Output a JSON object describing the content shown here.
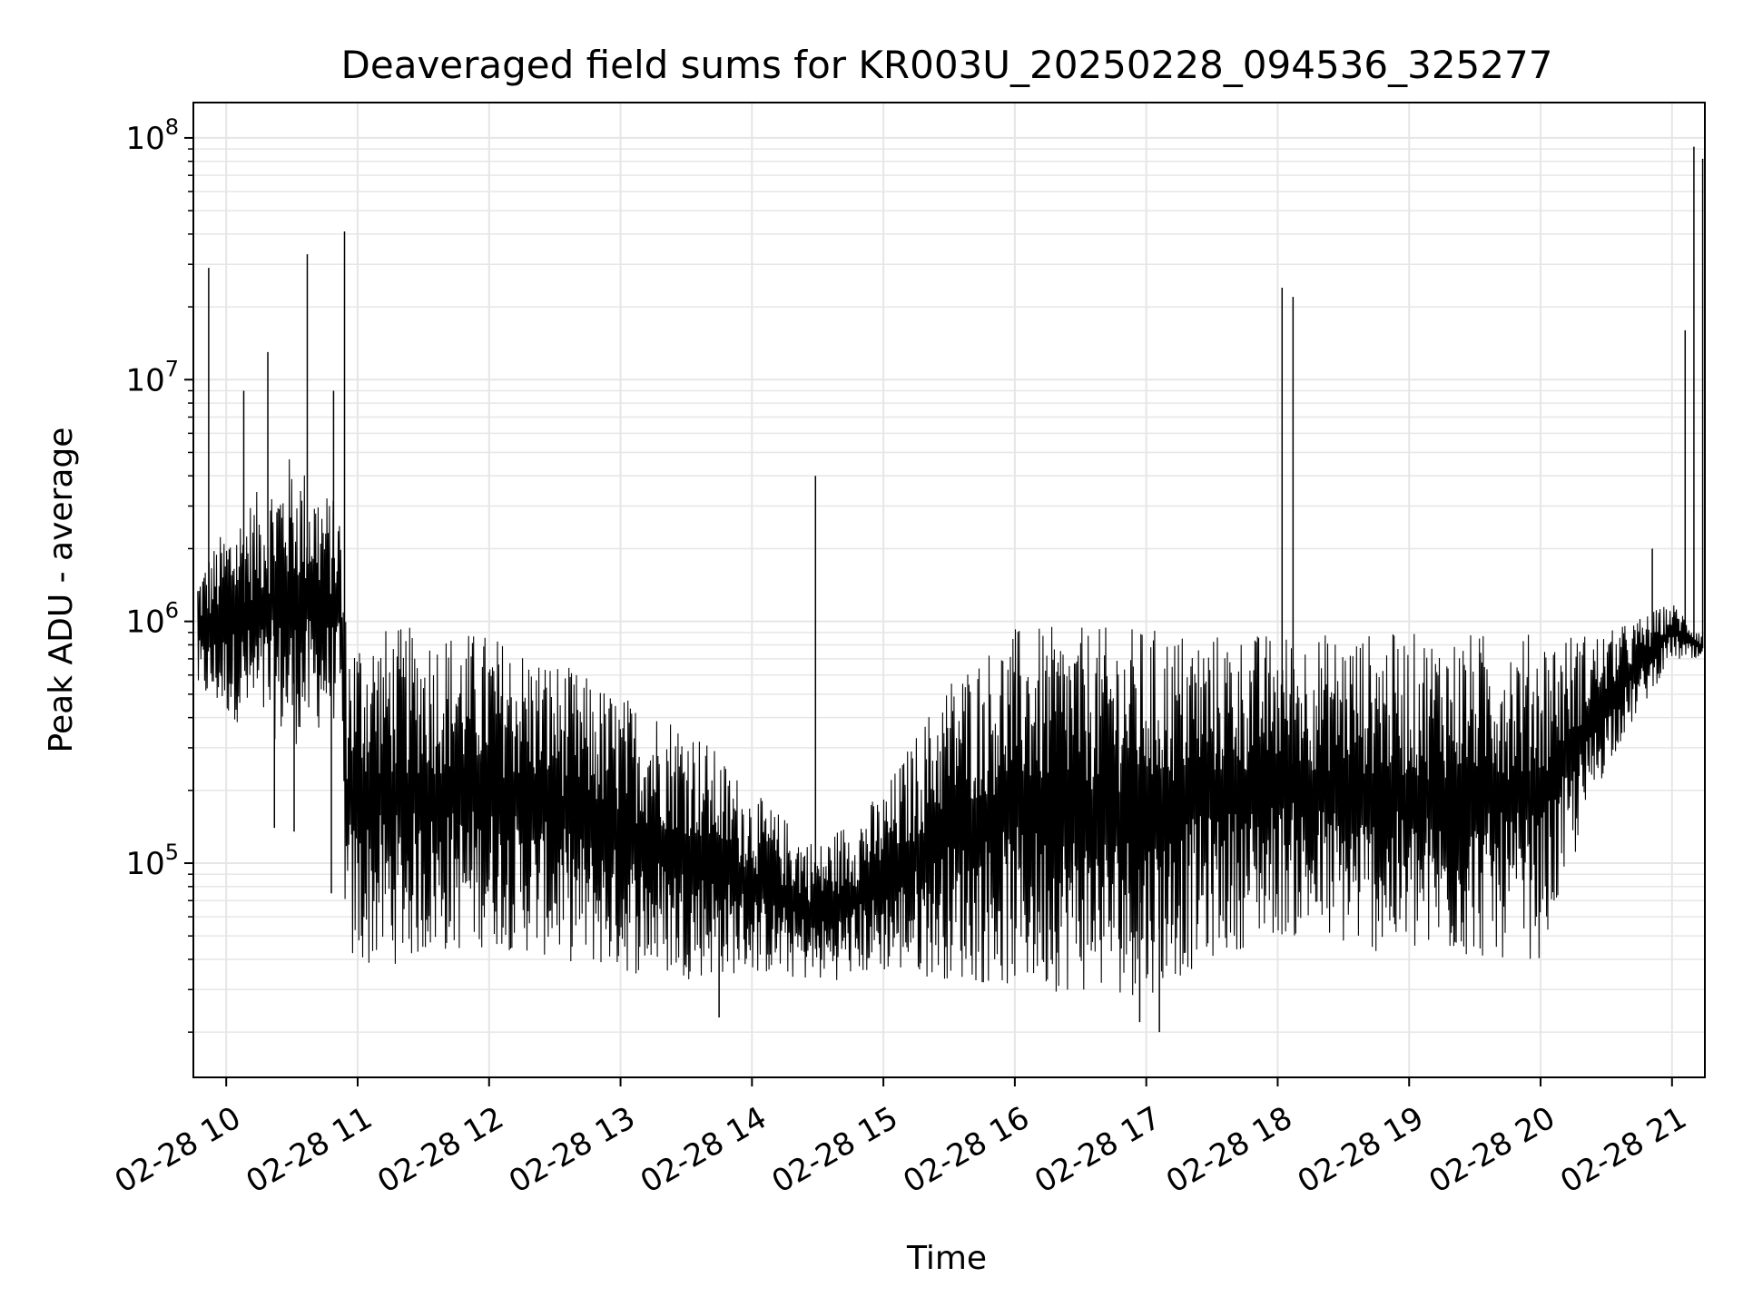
{
  "chart_data": {
    "type": "line",
    "title": "Deaveraged field sums for KR003U_20250228_094536_325277",
    "xlabel": "Time",
    "ylabel": "Peak ADU - average",
    "yscale": "log",
    "ylim": [
      13000,
      140000000
    ],
    "xlim": [
      "2025-02-28 09:45",
      "2025-02-28 21:15"
    ],
    "grid": true,
    "grid_minor_y": true,
    "line_color": "#000000",
    "grid_color": "#e6e6e6",
    "x_ticks": [
      {
        "t": "2025-02-28 10:00",
        "label": "02-28 10"
      },
      {
        "t": "2025-02-28 11:00",
        "label": "02-28 11"
      },
      {
        "t": "2025-02-28 12:00",
        "label": "02-28 12"
      },
      {
        "t": "2025-02-28 13:00",
        "label": "02-28 13"
      },
      {
        "t": "2025-02-28 14:00",
        "label": "02-28 14"
      },
      {
        "t": "2025-02-28 15:00",
        "label": "02-28 15"
      },
      {
        "t": "2025-02-28 16:00",
        "label": "02-28 16"
      },
      {
        "t": "2025-02-28 17:00",
        "label": "02-28 17"
      },
      {
        "t": "2025-02-28 18:00",
        "label": "02-28 18"
      },
      {
        "t": "2025-02-28 19:00",
        "label": "02-28 19"
      },
      {
        "t": "2025-02-28 20:00",
        "label": "02-28 20"
      },
      {
        "t": "2025-02-28 21:00",
        "label": "02-28 21"
      }
    ],
    "y_ticks": [
      {
        "value": 100000,
        "base": "10",
        "exp": "5"
      },
      {
        "value": 1000000,
        "base": "10",
        "exp": "6"
      },
      {
        "value": 10000000,
        "base": "10",
        "exp": "7"
      },
      {
        "value": 100000000,
        "base": "10",
        "exp": "8"
      }
    ],
    "envelope": [
      {
        "t": "2025-02-28 09:45",
        "low": 500000,
        "high": 1500000
      },
      {
        "t": "2025-02-28 10:00",
        "low": 400000,
        "high": 2500000
      },
      {
        "t": "2025-02-28 10:30",
        "low": 300000,
        "high": 5000000
      },
      {
        "t": "2025-02-28 10:52",
        "low": 400000,
        "high": 3000000
      },
      {
        "t": "2025-02-28 10:55",
        "low": 35000,
        "high": 950000
      },
      {
        "t": "2025-02-28 11:30",
        "low": 40000,
        "high": 950000
      },
      {
        "t": "2025-02-28 12:00",
        "low": 45000,
        "high": 900000
      },
      {
        "t": "2025-02-28 12:30",
        "low": 40000,
        "high": 700000
      },
      {
        "t": "2025-02-28 13:00",
        "low": 35000,
        "high": 500000
      },
      {
        "t": "2025-02-28 13:30",
        "low": 33000,
        "high": 400000
      },
      {
        "t": "2025-02-28 14:00",
        "low": 35000,
        "high": 200000
      },
      {
        "t": "2025-02-28 14:30",
        "low": 32000,
        "high": 120000
      },
      {
        "t": "2025-02-28 15:00",
        "low": 35000,
        "high": 200000
      },
      {
        "t": "2025-02-28 15:30",
        "low": 33000,
        "high": 600000
      },
      {
        "t": "2025-02-28 16:00",
        "low": 30000,
        "high": 950000
      },
      {
        "t": "2025-02-28 17:00",
        "low": 28000,
        "high": 950000
      },
      {
        "t": "2025-02-28 17:30",
        "low": 40000,
        "high": 900000
      },
      {
        "t": "2025-02-28 18:00",
        "low": 50000,
        "high": 900000
      },
      {
        "t": "2025-02-28 19:00",
        "low": 40000,
        "high": 900000
      },
      {
        "t": "2025-02-28 20:00",
        "low": 40000,
        "high": 900000
      },
      {
        "t": "2025-02-28 20:30",
        "low": 250000,
        "high": 900000
      },
      {
        "t": "2025-02-28 21:00",
        "low": 700000,
        "high": 1200000
      },
      {
        "t": "2025-02-28 21:15",
        "low": 650000,
        "high": 900000
      }
    ],
    "spikes": [
      {
        "t": "2025-02-28 09:52",
        "value": 29000000
      },
      {
        "t": "2025-02-28 10:19",
        "value": 13000000
      },
      {
        "t": "2025-02-28 10:08",
        "value": 9000000
      },
      {
        "t": "2025-02-28 10:37",
        "value": 33000000
      },
      {
        "t": "2025-02-28 10:54",
        "value": 41000000
      },
      {
        "t": "2025-02-28 10:49",
        "value": 9000000
      },
      {
        "t": "2025-02-28 14:29",
        "value": 4000000
      },
      {
        "t": "2025-02-28 18:02",
        "value": 24000000
      },
      {
        "t": "2025-02-28 18:07",
        "value": 22000000
      },
      {
        "t": "2025-02-28 20:51",
        "value": 2000000
      },
      {
        "t": "2025-02-28 21:06",
        "value": 16000000
      },
      {
        "t": "2025-02-28 21:10",
        "value": 92000000
      },
      {
        "t": "2025-02-28 21:14",
        "value": 82000000
      }
    ],
    "dips": [
      {
        "t": "2025-02-28 10:48",
        "value": 75000
      },
      {
        "t": "2025-02-28 10:22",
        "value": 140000
      },
      {
        "t": "2025-02-28 10:31",
        "value": 135000
      },
      {
        "t": "2025-02-28 16:57",
        "value": 22000
      },
      {
        "t": "2025-02-28 17:06",
        "value": 20000
      },
      {
        "t": "2025-02-28 13:45",
        "value": 23000
      }
    ]
  }
}
